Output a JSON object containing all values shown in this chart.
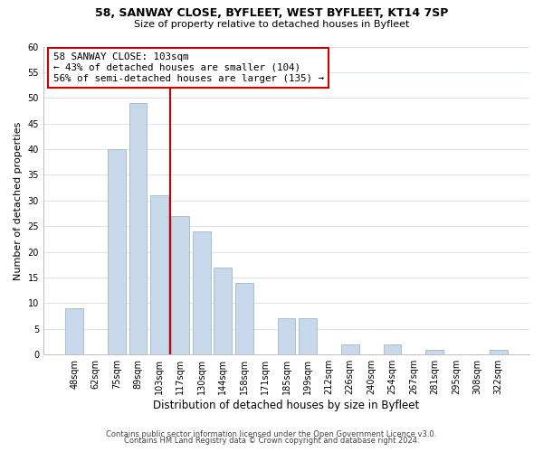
{
  "title1": "58, SANWAY CLOSE, BYFLEET, WEST BYFLEET, KT14 7SP",
  "title2": "Size of property relative to detached houses in Byfleet",
  "xlabel": "Distribution of detached houses by size in Byfleet",
  "ylabel": "Number of detached properties",
  "bin_labels": [
    "48sqm",
    "62sqm",
    "75sqm",
    "89sqm",
    "103sqm",
    "117sqm",
    "130sqm",
    "144sqm",
    "158sqm",
    "171sqm",
    "185sqm",
    "199sqm",
    "212sqm",
    "226sqm",
    "240sqm",
    "254sqm",
    "267sqm",
    "281sqm",
    "295sqm",
    "308sqm",
    "322sqm"
  ],
  "bar_values": [
    9,
    0,
    40,
    49,
    31,
    27,
    24,
    17,
    14,
    0,
    7,
    7,
    0,
    2,
    0,
    2,
    0,
    1,
    0,
    0,
    1
  ],
  "bar_color": "#c8d8eb",
  "bar_edge_color": "#a0b8cc",
  "vline_x_index": 4,
  "vline_color": "#cc0000",
  "annotation_line1": "58 SANWAY CLOSE: 103sqm",
  "annotation_line2": "← 43% of detached houses are smaller (104)",
  "annotation_line3": "56% of semi-detached houses are larger (135) →",
  "annotation_box_color": "#ffffff",
  "annotation_box_edge": "#cc0000",
  "ylim": [
    0,
    60
  ],
  "yticks": [
    0,
    5,
    10,
    15,
    20,
    25,
    30,
    35,
    40,
    45,
    50,
    55,
    60
  ],
  "footer1": "Contains HM Land Registry data © Crown copyright and database right 2024.",
  "footer2": "Contains public sector information licensed under the Open Government Licence v3.0.",
  "bg_color": "#ffffff",
  "grid_color": "#d8e4ec"
}
